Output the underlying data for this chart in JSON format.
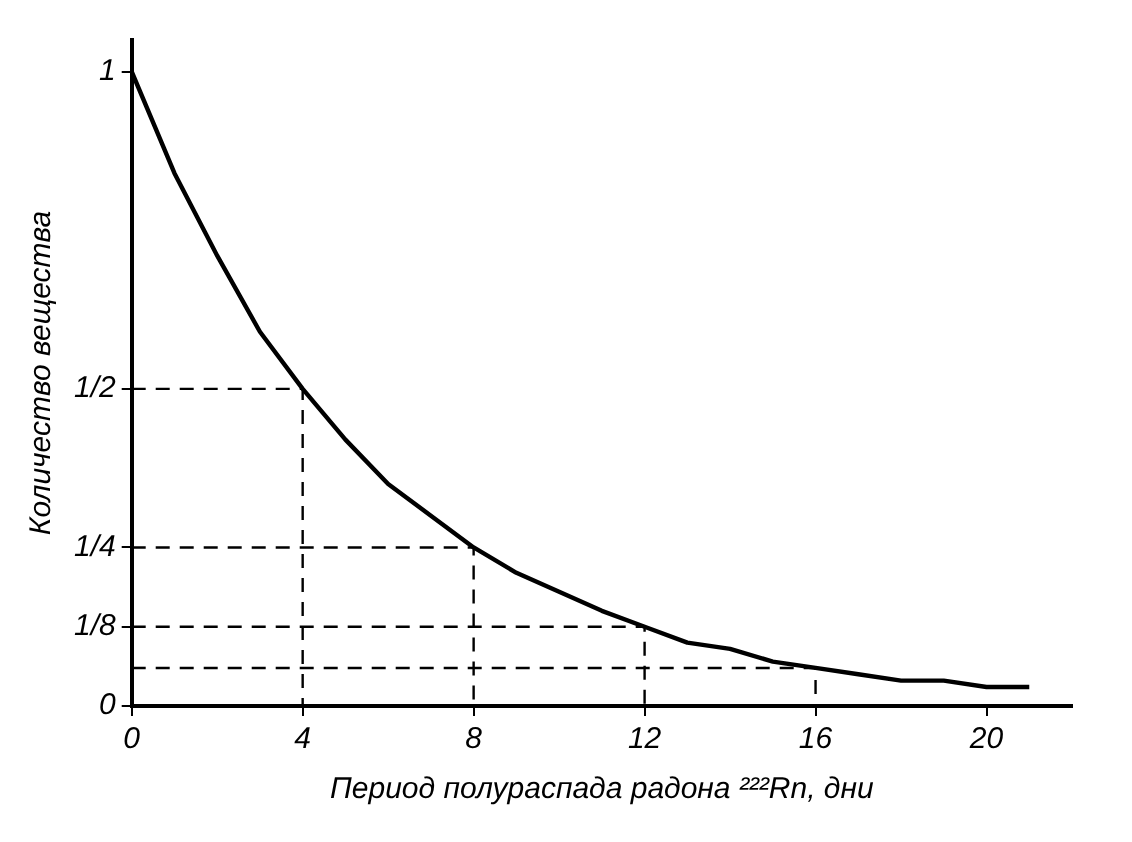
{
  "chart_data": {
    "type": "line",
    "xlabel": "Период полураспада радона ²²²Rn, дни",
    "ylabel": "Количество вещества",
    "xlim": [
      0,
      22
    ],
    "ylim": [
      0,
      1.05
    ],
    "xticks": [
      0,
      4,
      8,
      12,
      16,
      20
    ],
    "yticks": [
      0,
      {
        "value": 0.125,
        "label": "1/8"
      },
      {
        "value": 0.25,
        "label": "1/4"
      },
      {
        "value": 0.5,
        "label": "1/2"
      },
      1
    ],
    "grid": false,
    "legend": false,
    "marker": "none",
    "series": [
      {
        "color": "#000000",
        "line_style": "solid",
        "x": [
          0,
          1,
          2,
          3,
          4,
          5,
          6,
          7,
          8,
          9,
          10,
          11,
          12,
          13,
          14,
          15,
          16,
          17,
          18,
          19,
          20,
          21
        ],
        "values": [
          1,
          0.84,
          0.71,
          0.59,
          0.5,
          0.42,
          0.35,
          0.3,
          0.25,
          0.21,
          0.18,
          0.15,
          0.125,
          0.1,
          0.09,
          0.07,
          0.06,
          0.05,
          0.04,
          0.04,
          0.03,
          0.03
        ]
      },
      {
        "color": "#000000",
        "line_style": "dashed",
        "x": [
          0,
          4,
          4
        ],
        "values": [
          0.5,
          0.5,
          0
        ]
      },
      {
        "color": "#000000",
        "line_style": "dashed",
        "x": [
          0,
          8,
          8
        ],
        "values": [
          0.25,
          0.25,
          0
        ]
      },
      {
        "color": "#000000",
        "line_style": "dashed",
        "x": [
          0,
          12,
          12
        ],
        "values": [
          0.125,
          0.125,
          0
        ]
      },
      {
        "color": "#000000",
        "line_style": "dashed",
        "x": [
          0,
          16,
          16
        ],
        "values": [
          0.06,
          0.06,
          0
        ]
      }
    ]
  }
}
